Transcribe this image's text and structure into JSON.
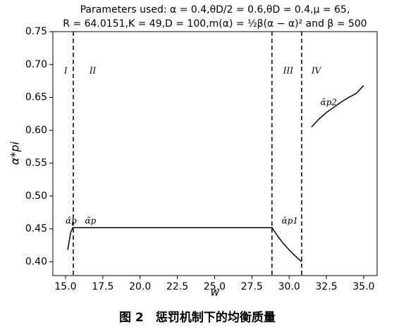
{
  "chart_data": {
    "type": "line",
    "title": "Parameters used: α = 0.4,θD/2 = 0.6,θD = 0.4,μ = 65,",
    "subtitle": "R = 64.0151,K = 49,D = 100,m(α) = ½β(α − α)² and β = 500",
    "x_label": "w",
    "y_label": "α*pi",
    "caption": "图 2　惩罚机制下的均衡质量",
    "x": [
      15.15,
      15.25,
      15.35,
      15.5,
      20.0,
      25.0,
      28.85,
      29.2,
      29.6,
      30.0,
      30.4,
      30.84,
      30.84,
      31.5,
      32.0,
      32.5,
      33.0,
      33.5,
      34.0,
      34.5,
      35.0
    ],
    "series": [
      {
        "name": "α*pi",
        "color": "#000000",
        "values": [
          0.418,
          0.432,
          0.445,
          0.452,
          0.452,
          0.452,
          0.452,
          0.44,
          0.428,
          0.418,
          0.409,
          0.4,
          null,
          0.605,
          0.617,
          0.627,
          0.635,
          0.643,
          0.65,
          0.656,
          0.668
        ]
      }
    ],
    "vlines": [
      15.52,
      28.85,
      30.84
    ],
    "annotations": [
      {
        "text": "I",
        "x": 14.9,
        "y": 0.69
      },
      {
        "text": "II",
        "x": 16.6,
        "y": 0.69
      },
      {
        "text": "III",
        "x": 29.6,
        "y": 0.69
      },
      {
        "text": "IV",
        "x": 31.5,
        "y": 0.69
      },
      {
        "text": "α̂p",
        "x": 15.0,
        "y": 0.462
      },
      {
        "text": "α̃p",
        "x": 16.3,
        "y": 0.462
      },
      {
        "text": "ᾱp1",
        "x": 29.5,
        "y": 0.462
      },
      {
        "text": "ᾱp2",
        "x": 32.1,
        "y": 0.642
      }
    ],
    "xlim": [
      14.15,
      35.9
    ],
    "ylim": [
      0.379,
      0.75
    ],
    "xticks": [
      {
        "value": 15,
        "label": "15.0"
      },
      17.5,
      {
        "value": 20,
        "label": "20.0"
      },
      22.5,
      {
        "value": 25,
        "label": "25.0"
      },
      27.5,
      {
        "value": 30,
        "label": "30.0"
      },
      32.5,
      {
        "value": 35,
        "label": "35.0"
      }
    ],
    "yticks": [
      {
        "value": 0.4,
        "label": "0.40"
      },
      0.45,
      {
        "value": 0.5,
        "label": "0.50"
      },
      0.55,
      {
        "value": 0.6,
        "label": "0.60"
      },
      0.65,
      {
        "value": 0.7,
        "label": "0.70"
      },
      0.75
    ],
    "grid": false
  }
}
